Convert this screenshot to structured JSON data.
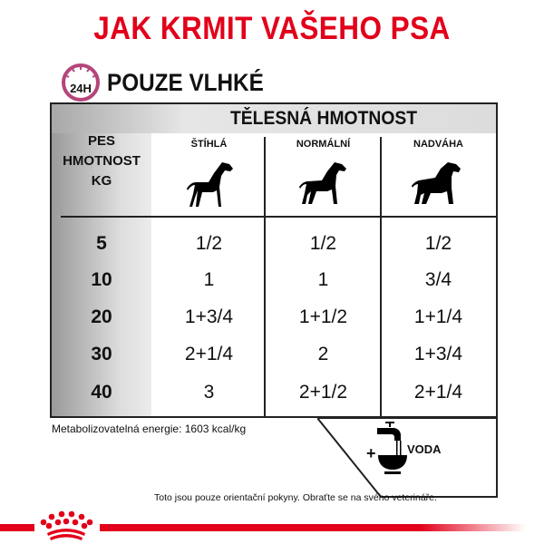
{
  "title": "JAK KRMIT VAŠEHO PSA",
  "clock_label": "24H",
  "subtitle": "POUZE VLHKÉ",
  "table": {
    "body_header": "TĚLESNÁ HMOTNOST",
    "row_header": [
      "PES",
      "HMOTNOST",
      "KG"
    ],
    "columns": [
      {
        "label": "ŠTÍHLÁ",
        "icon": "slim-dog-icon"
      },
      {
        "label": "NORMÁLNÍ",
        "icon": "normal-dog-icon"
      },
      {
        "label": "NADVÁHA",
        "icon": "overweight-dog-icon"
      }
    ],
    "rows": [
      {
        "kg": "5",
        "values": [
          "1/2",
          "1/2",
          "1/2"
        ]
      },
      {
        "kg": "10",
        "values": [
          "1",
          "1",
          "3/4"
        ]
      },
      {
        "kg": "20",
        "values": [
          "1+3/4",
          "1+1/2",
          "1+1/4"
        ]
      },
      {
        "kg": "30",
        "values": [
          "2+1/4",
          "2",
          "1+3/4"
        ]
      },
      {
        "kg": "40",
        "values": [
          "3",
          "2+1/2",
          "2+1/4"
        ]
      }
    ]
  },
  "energy": "Metabolizovatelná energie: 1603 kcal/kg",
  "water": {
    "plus": "+",
    "label": "VODA"
  },
  "note": "Toto jsou pouze orientační pokyny. Obraťte se na svého veterináře.",
  "colors": {
    "brand_red": "#e2001a",
    "clock": "#b5457a"
  }
}
